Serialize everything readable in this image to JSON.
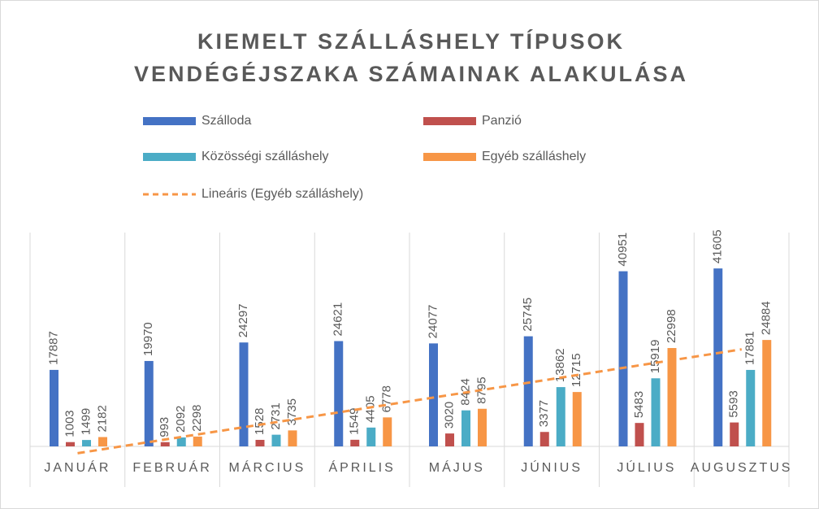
{
  "chart_data": {
    "type": "bar",
    "title": "KIEMELT SZÁLLÁSHELY TÍPUSOK VENDÉGÉJSZAKA SZÁMAINAK ALAKULÁSA",
    "categories": [
      "JANUÁR",
      "FEBRUÁR",
      "MÁRCIUS",
      "ÁPRILIS",
      "MÁJUS",
      "JÚNIUS",
      "JÚLIUS",
      "AUGUSZTUS"
    ],
    "series": [
      {
        "name": "Szálloda",
        "color": "#4472c4",
        "values": [
          17887,
          19970,
          24297,
          24621,
          24077,
          25745,
          40951,
          41605
        ]
      },
      {
        "name": "Panzió",
        "color": "#c0504d",
        "values": [
          1003,
          993,
          1528,
          1549,
          3020,
          3377,
          5483,
          5593
        ]
      },
      {
        "name": "Közösségi szálláshely",
        "color": "#4bacc6",
        "values": [
          1499,
          2092,
          2731,
          4405,
          8424,
          13862,
          15919,
          17881
        ]
      },
      {
        "name": "Egyéb szálláshely",
        "color": "#f79646",
        "values": [
          2182,
          2298,
          3735,
          6778,
          8795,
          12715,
          22998,
          24884
        ]
      }
    ],
    "trendline": {
      "name": "Lineáris (Egyéb szálláshely)",
      "series": 3,
      "type": "linear",
      "color": "#f79646"
    },
    "ylim": [
      0,
      50000
    ]
  }
}
